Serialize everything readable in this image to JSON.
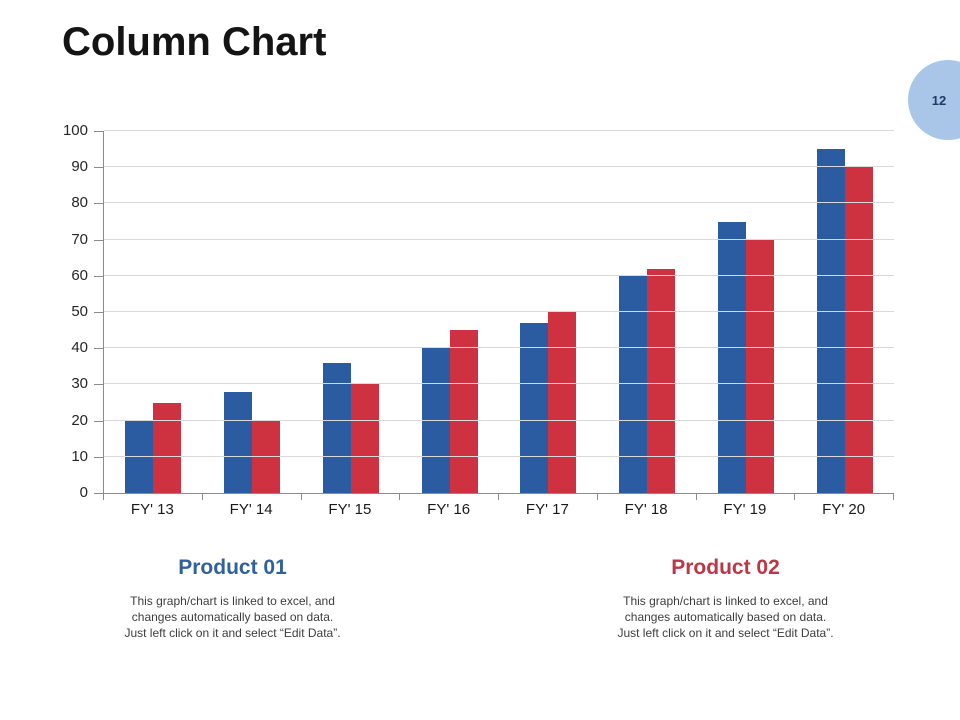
{
  "slide": {
    "title": "Column Chart",
    "page_number": "12",
    "badge_color": "#A9C6E8"
  },
  "chart_data": {
    "type": "bar",
    "title": "",
    "xlabel": "",
    "ylabel": "",
    "categories": [
      "FY' 13",
      "FY' 14",
      "FY' 15",
      "FY' 16",
      "FY' 17",
      "FY' 18",
      "FY' 19",
      "FY' 20"
    ],
    "series": [
      {
        "name": "Product 01",
        "color": "#2B5BA0",
        "values": [
          20,
          28,
          36,
          40,
          47,
          60,
          75,
          95
        ]
      },
      {
        "name": "Product 02",
        "color": "#CE3241",
        "values": [
          25,
          20,
          30,
          45,
          50,
          62,
          70,
          90
        ]
      }
    ],
    "ylim": [
      0,
      100
    ],
    "yticks": [
      0,
      10,
      20,
      30,
      40,
      50,
      60,
      70,
      80,
      90,
      100
    ],
    "grid": "horizontal",
    "gridline_color": "#D9D9D9",
    "axis_color": "#8C8C8C",
    "legend_position": "below-as-captions"
  },
  "captions": [
    {
      "title": "Product 01",
      "color": "#31609F",
      "lines": [
        "This graph/chart is linked to excel, and",
        "changes automatically based on data.",
        "Just left click on it and select “Edit Data”."
      ]
    },
    {
      "title": "Product 02",
      "color": "#BC3645",
      "lines": [
        "This graph/chart is linked to excel, and",
        "changes automatically based on data.",
        "Just left click on it and select “Edit Data”."
      ]
    }
  ]
}
